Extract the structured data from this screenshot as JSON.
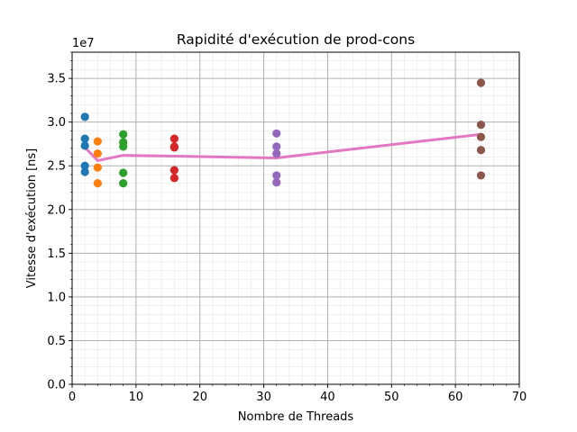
{
  "chart_data": {
    "type": "scatter",
    "title": "Rapidité d'exécution de prod-cons",
    "xlabel": "Nombre de Threads",
    "ylabel": "Vitesse d'exécution [ns]",
    "y_offset_label": "1e7",
    "xlim": [
      0,
      70
    ],
    "ylim": [
      0.0,
      3.8
    ],
    "x_ticks": [
      0,
      10,
      20,
      30,
      40,
      50,
      60,
      70
    ],
    "y_ticks": [
      0.0,
      0.5,
      1.0,
      1.5,
      2.0,
      2.5,
      3.0,
      3.5
    ],
    "x_tick_labels": [
      "0",
      "10",
      "20",
      "30",
      "40",
      "50",
      "60",
      "70"
    ],
    "y_tick_labels": [
      "0.0",
      "0.5",
      "1.0",
      "1.5",
      "2.0",
      "2.5",
      "3.0",
      "3.5"
    ],
    "grid": "major and minor",
    "scatter_series": [
      {
        "x": 2,
        "color": "#1f77b4",
        "values": [
          3.06,
          2.81,
          2.73,
          2.5,
          2.43
        ]
      },
      {
        "x": 4,
        "color": "#ff7f0e",
        "values": [
          2.78,
          2.64,
          2.48,
          2.3
        ]
      },
      {
        "x": 8,
        "color": "#2ca02c",
        "values": [
          2.86,
          2.77,
          2.72,
          2.42,
          2.3
        ]
      },
      {
        "x": 16,
        "color": "#d62728",
        "values": [
          2.81,
          2.72,
          2.71,
          2.45,
          2.36
        ]
      },
      {
        "x": 32,
        "color": "#9467bd",
        "values": [
          2.87,
          2.72,
          2.64,
          2.39,
          2.31
        ]
      },
      {
        "x": 64,
        "color": "#8c564b",
        "values": [
          3.45,
          2.97,
          2.83,
          2.68,
          2.39
        ]
      }
    ],
    "mean_line": {
      "color": "#e377c2",
      "x": [
        2,
        4,
        8,
        16,
        32,
        64
      ],
      "values": [
        2.71,
        2.56,
        2.62,
        2.61,
        2.59,
        2.86
      ]
    }
  }
}
